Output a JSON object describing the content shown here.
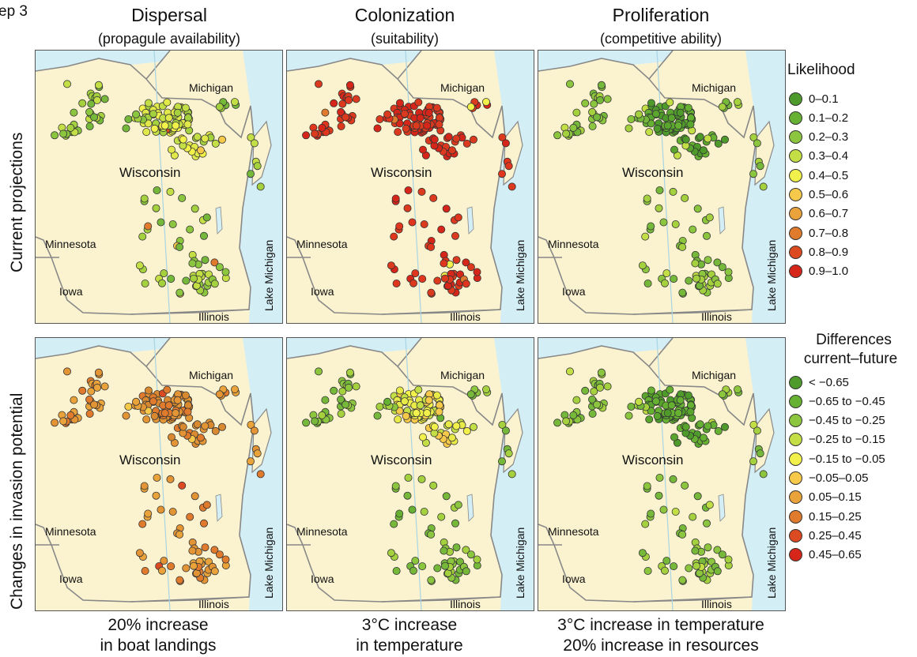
{
  "step_label": "ep 3",
  "columns": [
    {
      "title": "Dispersal",
      "subtitle": "(propagule availability)",
      "caption_line1": "20% increase",
      "caption_line2": "in boat landings"
    },
    {
      "title": "Colonization",
      "subtitle": "(suitability)",
      "caption_line1": "3°C increase",
      "caption_line2": "in temperature"
    },
    {
      "title": "Proliferation",
      "subtitle": "(competitive ability)",
      "caption_line1": "3°C increase in temperature",
      "caption_line2": "20% increase in resources"
    }
  ],
  "rows": [
    {
      "label": "Current projections"
    },
    {
      "label": "Changes in invasion potential"
    }
  ],
  "map_labels": {
    "michigan": "Michigan",
    "wisconsin": "Wisconsin",
    "minnesota": "Minnesota",
    "iowa": "Iowa",
    "illinois": "Illinois",
    "lake_michigan": "Lake Michigan"
  },
  "panels": [
    {
      "row": 0,
      "col": 0,
      "scheme": "dispersal_current",
      "color": "#7cc243"
    },
    {
      "row": 0,
      "col": 1,
      "scheme": "colonization_current",
      "color": "#dd2a1b"
    },
    {
      "row": 0,
      "col": 2,
      "scheme": "proliferation_current",
      "color": "#6cb33a"
    },
    {
      "row": 1,
      "col": 0,
      "scheme": "dispersal_change",
      "color": "#e0892e"
    },
    {
      "row": 1,
      "col": 1,
      "scheme": "colonization_change",
      "color": "#8cc63f"
    },
    {
      "row": 1,
      "col": 2,
      "scheme": "proliferation_change",
      "color": "#6cb33a"
    }
  ],
  "legend_likelihood": {
    "title": "Likelihood",
    "items": [
      {
        "label": "0–0.1",
        "color": "#4e9a2a"
      },
      {
        "label": "0.1–0.2",
        "color": "#66b032"
      },
      {
        "label": "0.2–0.3",
        "color": "#8cc63f"
      },
      {
        "label": "0.3–0.4",
        "color": "#c3df45"
      },
      {
        "label": "0.4–0.5",
        "color": "#f2f04a"
      },
      {
        "label": "0.5–0.6",
        "color": "#f6c94a"
      },
      {
        "label": "0.6–0.7",
        "color": "#e9a33a"
      },
      {
        "label": "0.7–0.8",
        "color": "#e07a2c"
      },
      {
        "label": "0.8–0.9",
        "color": "#dc4a22"
      },
      {
        "label": "0.9–1.0",
        "color": "#d6261a"
      }
    ]
  },
  "legend_differences": {
    "title_line1": "Differences",
    "title_line2": "current–future",
    "items": [
      {
        "label": "< −0.65",
        "color": "#4e9a2a"
      },
      {
        "label": "−0.65  to −0.45",
        "color": "#66b032"
      },
      {
        "label": "−0.45 to −0.25",
        "color": "#8cc63f"
      },
      {
        "label": "−0.25 to −0.15",
        "color": "#c3df45"
      },
      {
        "label": "−0.15 to −0.05",
        "color": "#f2f04a"
      },
      {
        "label": "−0.05–0.05",
        "color": "#f6c94a"
      },
      {
        "label": "0.05–0.15",
        "color": "#e9a33a"
      },
      {
        "label": "0.15–0.25",
        "color": "#e07a2c"
      },
      {
        "label": "0.25–0.45",
        "color": "#dc4a22"
      },
      {
        "label": "0.45–0.65",
        "color": "#d6261a"
      }
    ]
  }
}
